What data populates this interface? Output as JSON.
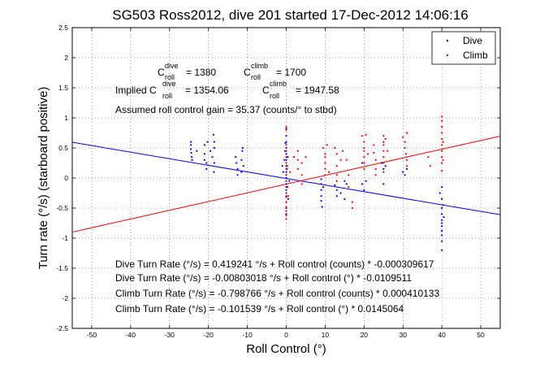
{
  "chart_data": {
    "type": "scatter",
    "title": "SG503 Ross2012, dive 201 started 17-Dec-2012 14:06:16",
    "xlabel": "Roll Control (°)",
    "ylabel": "Turn rate (°/s) (starboard positive)",
    "xlim": [
      -55,
      55
    ],
    "ylim": [
      -2.5,
      2.5
    ],
    "xticks": [
      -50,
      -40,
      -30,
      -20,
      -10,
      0,
      10,
      20,
      30,
      40,
      50
    ],
    "yticks": [
      -2.5,
      -2,
      -1.5,
      -1,
      -0.5,
      0,
      0.5,
      1,
      1.5,
      2,
      2.5
    ],
    "grid": true,
    "legend_position": "top-right",
    "series": [
      {
        "name": "Dive",
        "color": "#0000ff",
        "marker": "dot",
        "points": [
          [
            -24.5,
            0.55
          ],
          [
            -24.5,
            0.48
          ],
          [
            -24.4,
            0.42
          ],
          [
            -24.3,
            0.35
          ],
          [
            -24.2,
            0.3
          ],
          [
            -24.5,
            0.6
          ],
          [
            -23,
            0.45
          ],
          [
            -21,
            0.55
          ],
          [
            -21,
            0.4
          ],
          [
            -21,
            0.3
          ],
          [
            -20.5,
            0.25
          ],
          [
            -20.5,
            0.15
          ],
          [
            -20.2,
            0.6
          ],
          [
            -19.5,
            0.45
          ],
          [
            -19,
            0.35
          ],
          [
            -18.5,
            0.6
          ],
          [
            -18.5,
            0.5
          ],
          [
            -18.5,
            0.25
          ],
          [
            -18.6,
            0.1
          ],
          [
            -18.7,
            0.72
          ],
          [
            -13,
            0.35
          ],
          [
            -12.8,
            0.25
          ],
          [
            -12.5,
            0.15
          ],
          [
            -12.5,
            0.05
          ],
          [
            -11.5,
            0.3
          ],
          [
            -11.5,
            0.1
          ],
          [
            -11.3,
            0.45
          ],
          [
            -11.2,
            0.5
          ],
          [
            -11,
            0.2
          ],
          [
            -1,
            0.2
          ],
          [
            -0.8,
            0.1
          ],
          [
            -0.5,
            0.3
          ],
          [
            -0.3,
            0.45
          ],
          [
            -0.2,
            0.58
          ],
          [
            0,
            0.82
          ],
          [
            0,
            0.7
          ],
          [
            0,
            0.6
          ],
          [
            0,
            0.5
          ],
          [
            0,
            0.4
          ],
          [
            0,
            0.3
          ],
          [
            0,
            0.2
          ],
          [
            0,
            0.1
          ],
          [
            0,
            0.05
          ],
          [
            0,
            0
          ],
          [
            0,
            -0.05
          ],
          [
            0,
            -0.1
          ],
          [
            0,
            -0.15
          ],
          [
            0,
            -0.2
          ],
          [
            0,
            -0.25
          ],
          [
            0,
            -0.3
          ],
          [
            0,
            -0.4
          ],
          [
            0,
            -0.5
          ],
          [
            0,
            -0.6
          ],
          [
            0.2,
            0.15
          ],
          [
            0.3,
            -0.15
          ],
          [
            0.4,
            0.35
          ],
          [
            0.5,
            -0.35
          ],
          [
            0.8,
            -0.05
          ],
          [
            9,
            -0.02
          ],
          [
            9,
            -0.1
          ],
          [
            9,
            -0.2
          ],
          [
            9,
            -0.3
          ],
          [
            9,
            -0.38
          ],
          [
            9.2,
            -0.48
          ],
          [
            9.5,
            -0.15
          ],
          [
            12.5,
            -0.12
          ],
          [
            13,
            -0.2
          ],
          [
            13,
            -0.3
          ],
          [
            14,
            -0.25
          ],
          [
            15,
            -0.05
          ],
          [
            15,
            -0.35
          ],
          [
            15.5,
            -0.1
          ],
          [
            19.5,
            0.25
          ],
          [
            19.5,
            -0.1
          ],
          [
            20,
            -0.2
          ],
          [
            20.5,
            -0.05
          ],
          [
            24.5,
            0.25
          ],
          [
            25,
            0.15
          ],
          [
            25,
            -0.1
          ],
          [
            25.5,
            0.2
          ],
          [
            30,
            0.1
          ],
          [
            30.5,
            0.05
          ],
          [
            31,
            0.15
          ],
          [
            39.5,
            -0.25
          ],
          [
            40,
            -0.5
          ],
          [
            40,
            -0.6
          ],
          [
            40,
            -0.7
          ],
          [
            40,
            -0.75
          ],
          [
            40,
            -0.8
          ],
          [
            40,
            -0.88
          ],
          [
            40,
            -0.95
          ],
          [
            40,
            -1.05
          ],
          [
            40,
            -1.2
          ],
          [
            40,
            -0.35
          ],
          [
            40,
            -0.15
          ],
          [
            40.3,
            -0.45
          ],
          [
            40.5,
            -0.65
          ]
        ]
      },
      {
        "name": "Climb",
        "color": "#ff0000",
        "marker": "dot",
        "points": [
          [
            0,
            0.85
          ],
          [
            0,
            0.8
          ],
          [
            0,
            0.55
          ],
          [
            0,
            0.45
          ],
          [
            0,
            0.35
          ],
          [
            0,
            0.25
          ],
          [
            0,
            0.15
          ],
          [
            0,
            0.05
          ],
          [
            0,
            -0.05
          ],
          [
            0,
            -0.15
          ],
          [
            0,
            -0.25
          ],
          [
            0,
            -0.32
          ],
          [
            0,
            -0.4
          ],
          [
            0,
            -0.48
          ],
          [
            0,
            -0.55
          ],
          [
            0,
            -0.62
          ],
          [
            0,
            -0.68
          ],
          [
            0.3,
            0.2
          ],
          [
            0.5,
            -0.3
          ],
          [
            1,
            0.1
          ],
          [
            2,
            0.35
          ],
          [
            3,
            0.45
          ],
          [
            3,
            0.3
          ],
          [
            3,
            0.15
          ],
          [
            4,
            0.25
          ],
          [
            4,
            0.05
          ],
          [
            4,
            -0.1
          ],
          [
            5,
            0.35
          ],
          [
            9.5,
            0.5
          ],
          [
            10,
            0.4
          ],
          [
            10,
            0.35
          ],
          [
            10,
            0.25
          ],
          [
            10,
            0.15
          ],
          [
            10,
            0.05
          ],
          [
            10.5,
            0.55
          ],
          [
            11,
            0.1
          ],
          [
            12.5,
            0.5
          ],
          [
            13,
            0.4
          ],
          [
            13,
            0.2
          ],
          [
            13,
            0.05
          ],
          [
            13,
            -0.05
          ],
          [
            14,
            0.3
          ],
          [
            14.5,
            0.45
          ],
          [
            15.5,
            0.3
          ],
          [
            16,
            0.05
          ],
          [
            16,
            -0.15
          ],
          [
            17,
            -0.4
          ],
          [
            17,
            -0.5
          ],
          [
            19.5,
            0.7
          ],
          [
            20,
            0.6
          ],
          [
            20,
            0.5
          ],
          [
            20,
            0.45
          ],
          [
            20,
            0.35
          ],
          [
            20,
            0.25
          ],
          [
            20,
            0.15
          ],
          [
            20.5,
            0.72
          ],
          [
            21,
            0.4
          ],
          [
            22.5,
            0.55
          ],
          [
            22.5,
            0.42
          ],
          [
            23,
            0.3
          ],
          [
            23,
            0.15
          ],
          [
            23,
            0.05
          ],
          [
            25,
            0.7
          ],
          [
            25,
            0.6
          ],
          [
            25,
            0.55
          ],
          [
            25,
            0.45
          ],
          [
            25,
            0.35
          ],
          [
            25,
            0.25
          ],
          [
            25,
            0.1
          ],
          [
            25.5,
            0.65
          ],
          [
            26,
            0.45
          ],
          [
            30,
            0.68
          ],
          [
            30.5,
            0.6
          ],
          [
            30.5,
            0.5
          ],
          [
            30.8,
            0.4
          ],
          [
            31,
            0.3
          ],
          [
            31,
            0.2
          ],
          [
            31,
            0.75
          ],
          [
            36.5,
            0.35
          ],
          [
            37,
            0.2
          ],
          [
            40,
            1.02
          ],
          [
            40,
            0.95
          ],
          [
            40,
            0.85
          ],
          [
            40,
            0.75
          ],
          [
            40,
            0.65
          ],
          [
            40,
            0.55
          ],
          [
            40,
            0.45
          ],
          [
            40,
            0.35
          ],
          [
            40,
            0.25
          ],
          [
            40,
            0.12
          ],
          [
            40.3,
            0.6
          ],
          [
            40.3,
            0.3
          ]
        ]
      }
    ],
    "fit_lines": [
      {
        "name": "Dive fit",
        "color": "#0000ff",
        "intercept": -0.00803018,
        "slope": -0.0109511,
        "x_range": [
          -55,
          55
        ]
      },
      {
        "name": "Climb fit",
        "color": "#ff0000",
        "intercept": -0.101539,
        "slope": 0.0145064,
        "x_range": [
          -55,
          55
        ]
      }
    ],
    "annotations": {
      "c_dive_label": "C",
      "c_dive_sup": "dive",
      "c_dive_sub": "roll",
      "c_dive_value": "= 1380",
      "c_climb_label": "C",
      "c_climb_sup": "climb",
      "c_climb_sub": "roll",
      "c_climb_value": "= 1700",
      "implied_label": "Implied C",
      "implied_dive_sup": "dive",
      "implied_dive_sub": "roll",
      "implied_dive_value": "= 1354.06",
      "implied_climb_label": "C",
      "implied_climb_sup": "climb",
      "implied_climb_sub": "roll",
      "implied_climb_value": "= 1947.58",
      "gain_text": "Assumed roll control gain = 35.37 (counts/° to stbd)",
      "eq_lines": [
        "Dive Turn Rate (°/s) = 0.419241 °/s + Roll control (counts) * -0.000309617",
        "Dive Turn Rate (°/s) = -0.00803018 °/s + Roll control (°) * -0.0109511",
        "Climb Turn Rate (°/s) = -0.798766 °/s + Roll control (counts) * 0.000410133",
        "Climb Turn Rate (°/s) = -0.101539 °/s + Roll control (°) * 0.0145064"
      ]
    }
  }
}
